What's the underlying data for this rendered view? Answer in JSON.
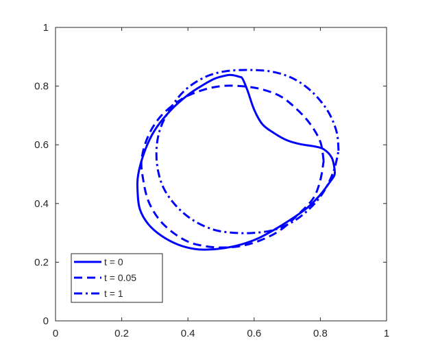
{
  "chart_data": {
    "type": "line",
    "title": "",
    "xlabel": "",
    "ylabel": "",
    "xlim": [
      0,
      1
    ],
    "ylim": [
      0,
      1
    ],
    "xticks": [
      "0",
      "0.2",
      "0.4",
      "0.6",
      "0.8",
      "1"
    ],
    "yticks": [
      "0",
      "0.2",
      "0.4",
      "0.6",
      "0.8",
      "1"
    ],
    "grid": false,
    "legend_position": "bottom-left",
    "series_color": "#0000ff",
    "series": [
      {
        "name": "t = 0",
        "style": "solid",
        "x": [
          0.844,
          0.835,
          0.81,
          0.78,
          0.74,
          0.7,
          0.66,
          0.625,
          0.6,
          0.58,
          0.565,
          0.555,
          0.53,
          0.51,
          0.48,
          0.44,
          0.4,
          0.35,
          0.3,
          0.27,
          0.25,
          0.248,
          0.255,
          0.28,
          0.32,
          0.37,
          0.42,
          0.46,
          0.51,
          0.56,
          0.61,
          0.66,
          0.71,
          0.76,
          0.8,
          0.83,
          0.842,
          0.844
        ],
        "y": [
          0.51,
          0.555,
          0.585,
          0.595,
          0.602,
          0.615,
          0.64,
          0.67,
          0.72,
          0.785,
          0.825,
          0.832,
          0.838,
          0.835,
          0.825,
          0.8,
          0.77,
          0.72,
          0.65,
          0.58,
          0.5,
          0.44,
          0.38,
          0.33,
          0.29,
          0.26,
          0.245,
          0.243,
          0.248,
          0.26,
          0.28,
          0.31,
          0.345,
          0.385,
          0.43,
          0.475,
          0.495,
          0.51
        ]
      },
      {
        "name": "t = 0.05",
        "style": "dashed",
        "x": [
          0.81,
          0.8,
          0.77,
          0.73,
          0.68,
          0.62,
          0.56,
          0.5,
          0.44,
          0.38,
          0.32,
          0.28,
          0.26,
          0.265,
          0.28,
          0.31,
          0.35,
          0.4,
          0.45,
          0.5,
          0.56,
          0.62,
          0.68,
          0.74,
          0.78,
          0.8,
          0.81
        ],
        "y": [
          0.545,
          0.61,
          0.67,
          0.72,
          0.765,
          0.79,
          0.8,
          0.8,
          0.785,
          0.755,
          0.7,
          0.63,
          0.55,
          0.48,
          0.41,
          0.35,
          0.305,
          0.27,
          0.255,
          0.25,
          0.255,
          0.275,
          0.31,
          0.37,
          0.42,
          0.48,
          0.545
        ]
      },
      {
        "name": "t = 1",
        "style": "dashdot",
        "x": [
          0.855,
          0.85,
          0.83,
          0.8,
          0.76,
          0.71,
          0.65,
          0.58,
          0.51,
          0.45,
          0.39,
          0.345,
          0.315,
          0.305,
          0.31,
          0.33,
          0.37,
          0.42,
          0.48,
          0.54,
          0.6,
          0.66,
          0.72,
          0.77,
          0.81,
          0.84,
          0.855
        ],
        "y": [
          0.58,
          0.64,
          0.7,
          0.75,
          0.795,
          0.83,
          0.85,
          0.855,
          0.85,
          0.83,
          0.785,
          0.72,
          0.65,
          0.58,
          0.51,
          0.445,
          0.385,
          0.34,
          0.31,
          0.3,
          0.3,
          0.31,
          0.34,
          0.385,
          0.44,
          0.51,
          0.58
        ]
      }
    ]
  }
}
